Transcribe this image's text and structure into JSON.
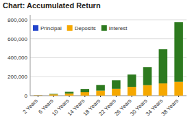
{
  "chart_data": {
    "type": "bar",
    "stacked": true,
    "title": "Chart: Accumulated Return",
    "categories": [
      "2 Years",
      "6 Years",
      "10 Years",
      "14 Years",
      "18 Years",
      "22 Years",
      "26 Years",
      "30 Years",
      "34 Years",
      "38 Years"
    ],
    "series": [
      {
        "name": "Principal",
        "color": "#2244cc",
        "values": [
          1000,
          1000,
          1000,
          1000,
          1000,
          1000,
          1000,
          1000,
          1000,
          1000
        ]
      },
      {
        "name": "Deposits",
        "color": "#f5a800",
        "values": [
          3000,
          12000,
          22000,
          35000,
          52000,
          72000,
          92000,
          110000,
          128000,
          145000
        ]
      },
      {
        "name": "Interest",
        "color": "#2d7a1f",
        "values": [
          500,
          6000,
          18000,
          35000,
          60000,
          90000,
          130000,
          190000,
          360000,
          630000
        ]
      }
    ],
    "ylim": [
      0,
      850000
    ],
    "yticks": [
      0,
      {
        "value": 200000,
        "label": "200,000"
      },
      {
        "value": 400000,
        "label": "400,000"
      },
      {
        "value": 600000,
        "label": "600,000"
      },
      {
        "value": 800000,
        "label": "800,000"
      }
    ],
    "grid": true,
    "legend": "upper left"
  }
}
